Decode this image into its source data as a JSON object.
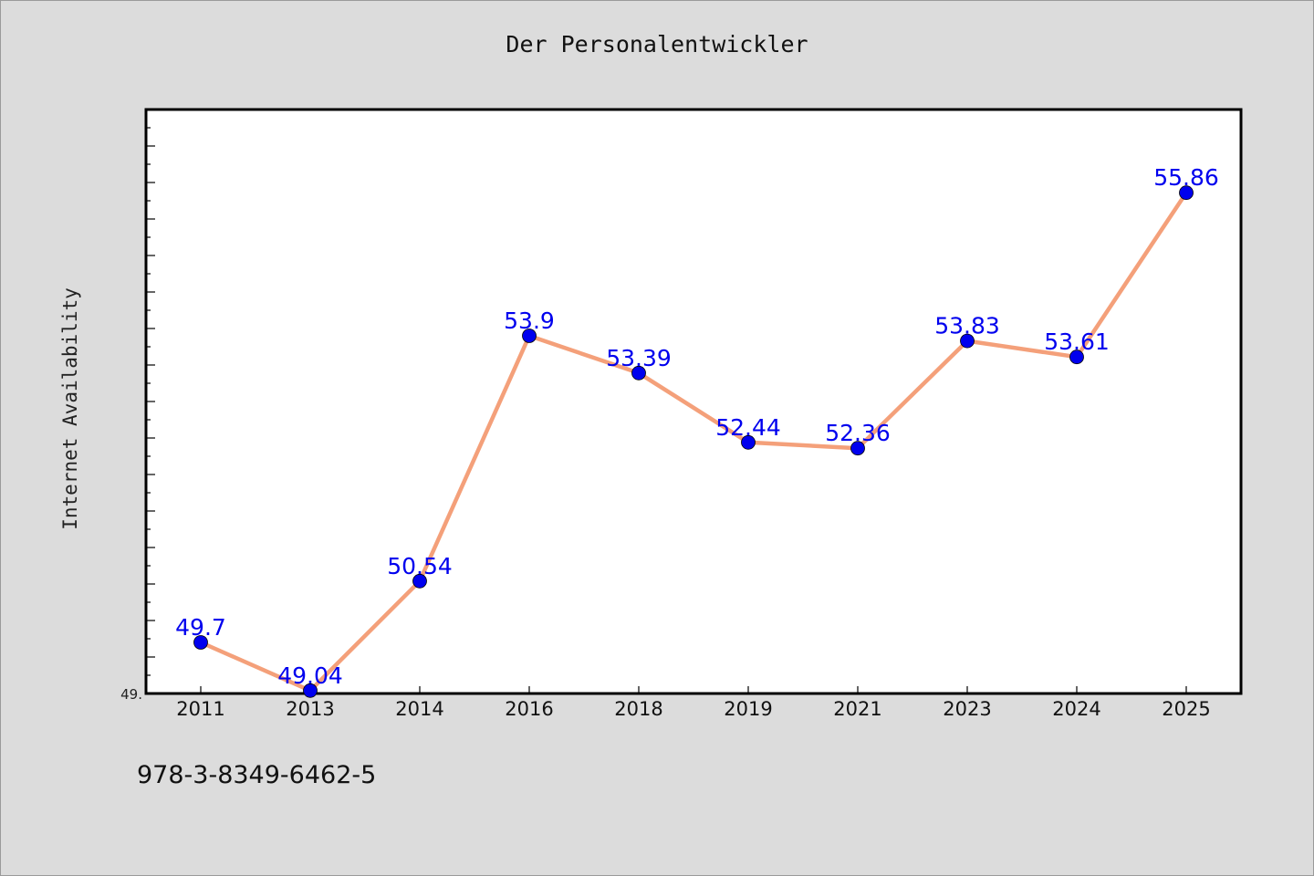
{
  "chart_data": {
    "type": "line",
    "title": "Der Personalentwickler",
    "xlabel": "",
    "ylabel": "Internet Availability",
    "categories": [
      "2011",
      "2013",
      "2014",
      "2016",
      "2018",
      "2019",
      "2021",
      "2023",
      "2024",
      "2025"
    ],
    "series": [
      {
        "values": [
          49.7,
          49.04,
          50.54,
          53.9,
          53.39,
          52.44,
          52.36,
          53.83,
          53.61,
          55.86
        ],
        "labels": [
          "49.7",
          "49.04",
          "50.54",
          "53.9",
          "53.39",
          "52.44",
          "52.36",
          "53.83",
          "53.61",
          "55.86"
        ],
        "line_color": "#f4a07a",
        "marker_color": "#0000ee",
        "label_color": "#0000ee"
      }
    ],
    "ylim": [
      49,
      57
    ],
    "y_tick_labels": [
      "49."
    ],
    "grid": false,
    "legend": "none"
  },
  "footer": {
    "isbn": "978-3-8349-6462-5"
  }
}
